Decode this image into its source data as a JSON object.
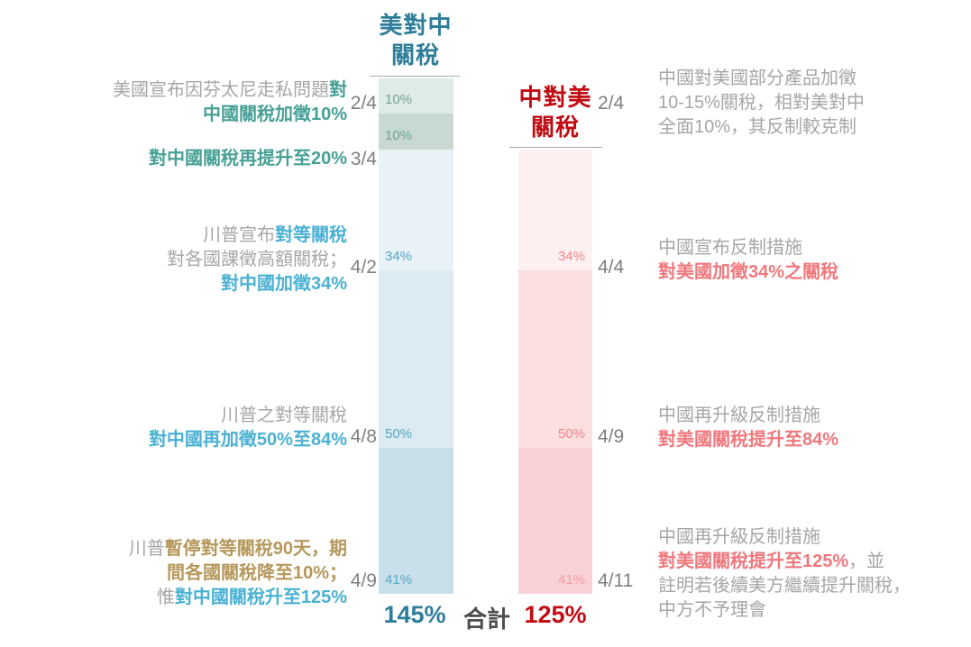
{
  "colors": {
    "us_header": "#2e7e99",
    "cn_header": "#c00c12",
    "teal_text": "#47a096",
    "cyan_text": "#4bb1d3",
    "gold_text": "#b5985c",
    "salmon_text": "#f0787d",
    "gray_text": "#a6a6a6",
    "date_gray": "#7f7f7f",
    "total_label_gray": "#4d4d4d",
    "us_segment_fills": [
      "#dfebe7",
      "#c8d9d4",
      "#e9f2f6",
      "#dcebf1",
      "#c9dfe9"
    ],
    "cn_segment_fills": [
      "#fdf0f0",
      "#fbdfe1",
      "#f9d2d6"
    ]
  },
  "headers": {
    "us_line1": "美對中",
    "us_line2": "關稅",
    "cn_line1": "中對美",
    "cn_line2": "關稅"
  },
  "totals": {
    "us": "145%",
    "label": "合計",
    "cn": "125%"
  },
  "chart_data": {
    "type": "bar",
    "subtype": "stacked-column-pair",
    "unit": "%",
    "total_label": "合計",
    "series": [
      {
        "name": "美對中關稅",
        "total": 145,
        "total_text": "145%",
        "segments": [
          {
            "date": "2/4",
            "value": 10,
            "label": "10%"
          },
          {
            "date": "3/4",
            "value": 10,
            "label": "10%"
          },
          {
            "date": "4/2",
            "value": 34,
            "label": "34%"
          },
          {
            "date": "4/8",
            "value": 50,
            "label": "50%"
          },
          {
            "date": "4/9",
            "value": 41,
            "label": "41%"
          }
        ]
      },
      {
        "name": "中對美關稅",
        "total": 125,
        "total_text": "125%",
        "segments": [
          {
            "date": "4/4",
            "value": 34,
            "label": "34%"
          },
          {
            "date": "4/9",
            "value": 50,
            "label": "50%"
          },
          {
            "date": "4/11",
            "value": 41,
            "label": "41%"
          }
        ]
      }
    ]
  },
  "annotations_left": [
    {
      "date": "2/4",
      "lines": [
        {
          "spans": [
            {
              "text": "美國宣布因芬太尼走私問題",
              "color": "gray"
            },
            {
              "text": "對",
              "color": "teal"
            }
          ]
        },
        {
          "spans": [
            {
              "text": "中國關稅加徵10%",
              "color": "teal"
            }
          ]
        }
      ]
    },
    {
      "date": "3/4",
      "lines": [
        {
          "spans": [
            {
              "text": "對中國關稅再提升至20%",
              "color": "teal"
            }
          ]
        }
      ]
    },
    {
      "date": "4/2",
      "lines": [
        {
          "spans": [
            {
              "text": "川普宣布",
              "color": "gray"
            },
            {
              "text": "對等關稅",
              "color": "cyan"
            }
          ]
        },
        {
          "spans": [
            {
              "text": "對各國課徵高額關稅；",
              "color": "gray"
            }
          ]
        },
        {
          "spans": [
            {
              "text": "對中國加徵34%",
              "color": "cyan"
            }
          ]
        }
      ]
    },
    {
      "date": "4/8",
      "lines": [
        {
          "spans": [
            {
              "text": "川普之對等關稅",
              "color": "gray"
            }
          ]
        },
        {
          "spans": [
            {
              "text": "對中國再加徵50%至84%",
              "color": "cyan"
            }
          ]
        }
      ]
    },
    {
      "date": "4/9",
      "lines": [
        {
          "spans": [
            {
              "text": "川普",
              "color": "gray"
            },
            {
              "text": "暫停對等關稅90天，期",
              "color": "gold"
            }
          ]
        },
        {
          "spans": [
            {
              "text": "間各國關稅降至10%；",
              "color": "gold"
            }
          ]
        },
        {
          "spans": [
            {
              "text": "惟",
              "color": "gray"
            },
            {
              "text": "對中國關稅升至125%",
              "color": "cyan"
            }
          ]
        }
      ]
    }
  ],
  "annotations_right": [
    {
      "date": "2/4",
      "lines": [
        {
          "spans": [
            {
              "text": "中國對美國部分產品加徵",
              "color": "gray"
            }
          ]
        },
        {
          "spans": [
            {
              "text": "10-15%關稅，相對美對中",
              "color": "gray"
            }
          ]
        },
        {
          "spans": [
            {
              "text": "全面10%，其反制較克制",
              "color": "gray"
            }
          ]
        }
      ]
    },
    {
      "date": "4/4",
      "lines": [
        {
          "spans": [
            {
              "text": "中國宣布反制措施",
              "color": "gray"
            }
          ]
        },
        {
          "spans": [
            {
              "text": "對美國加徵34%之關稅",
              "color": "salmon"
            }
          ]
        }
      ]
    },
    {
      "date": "4/9",
      "lines": [
        {
          "spans": [
            {
              "text": "中國再升級反制措施",
              "color": "gray"
            }
          ]
        },
        {
          "spans": [
            {
              "text": "對美國關稅提升至84%",
              "color": "salmon"
            }
          ]
        }
      ]
    },
    {
      "date": "4/11",
      "lines": [
        {
          "spans": [
            {
              "text": "中國再升級反制措施",
              "color": "gray"
            }
          ]
        },
        {
          "spans": [
            {
              "text": "對美國關稅提升至125%",
              "color": "salmon"
            },
            {
              "text": "，並",
              "color": "gray"
            }
          ]
        },
        {
          "spans": [
            {
              "text": "註明若後續美方繼續提升關稅，",
              "color": "gray"
            }
          ]
        },
        {
          "spans": [
            {
              "text": "中方不予理會",
              "color": "gray"
            }
          ]
        }
      ]
    }
  ]
}
